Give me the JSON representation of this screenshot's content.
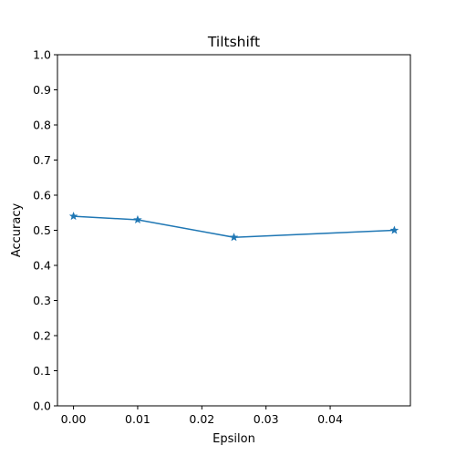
{
  "chart_data": {
    "type": "line",
    "title": "Tiltshift",
    "xlabel": "Epsilon",
    "ylabel": "Accuracy",
    "xlim": [
      -0.0025,
      0.0525
    ],
    "ylim": [
      0.0,
      1.0
    ],
    "x_ticks": [
      0.0,
      0.01,
      0.02,
      0.03,
      0.04
    ],
    "x_tick_labels": [
      "0.00",
      "0.01",
      "0.02",
      "0.03",
      "0.04"
    ],
    "y_ticks": [
      0.0,
      0.1,
      0.2,
      0.3,
      0.4,
      0.5,
      0.6,
      0.7,
      0.8,
      0.9,
      1.0
    ],
    "y_tick_labels": [
      "0.0",
      "0.1",
      "0.2",
      "0.3",
      "0.4",
      "0.5",
      "0.6",
      "0.7",
      "0.8",
      "0.9",
      "1.0"
    ],
    "grid": false,
    "series": [
      {
        "x": [
          0.0,
          0.01,
          0.025,
          0.05
        ],
        "values": [
          0.54,
          0.53,
          0.48,
          0.5
        ],
        "color": "#1f77b4",
        "marker": "star"
      }
    ]
  }
}
